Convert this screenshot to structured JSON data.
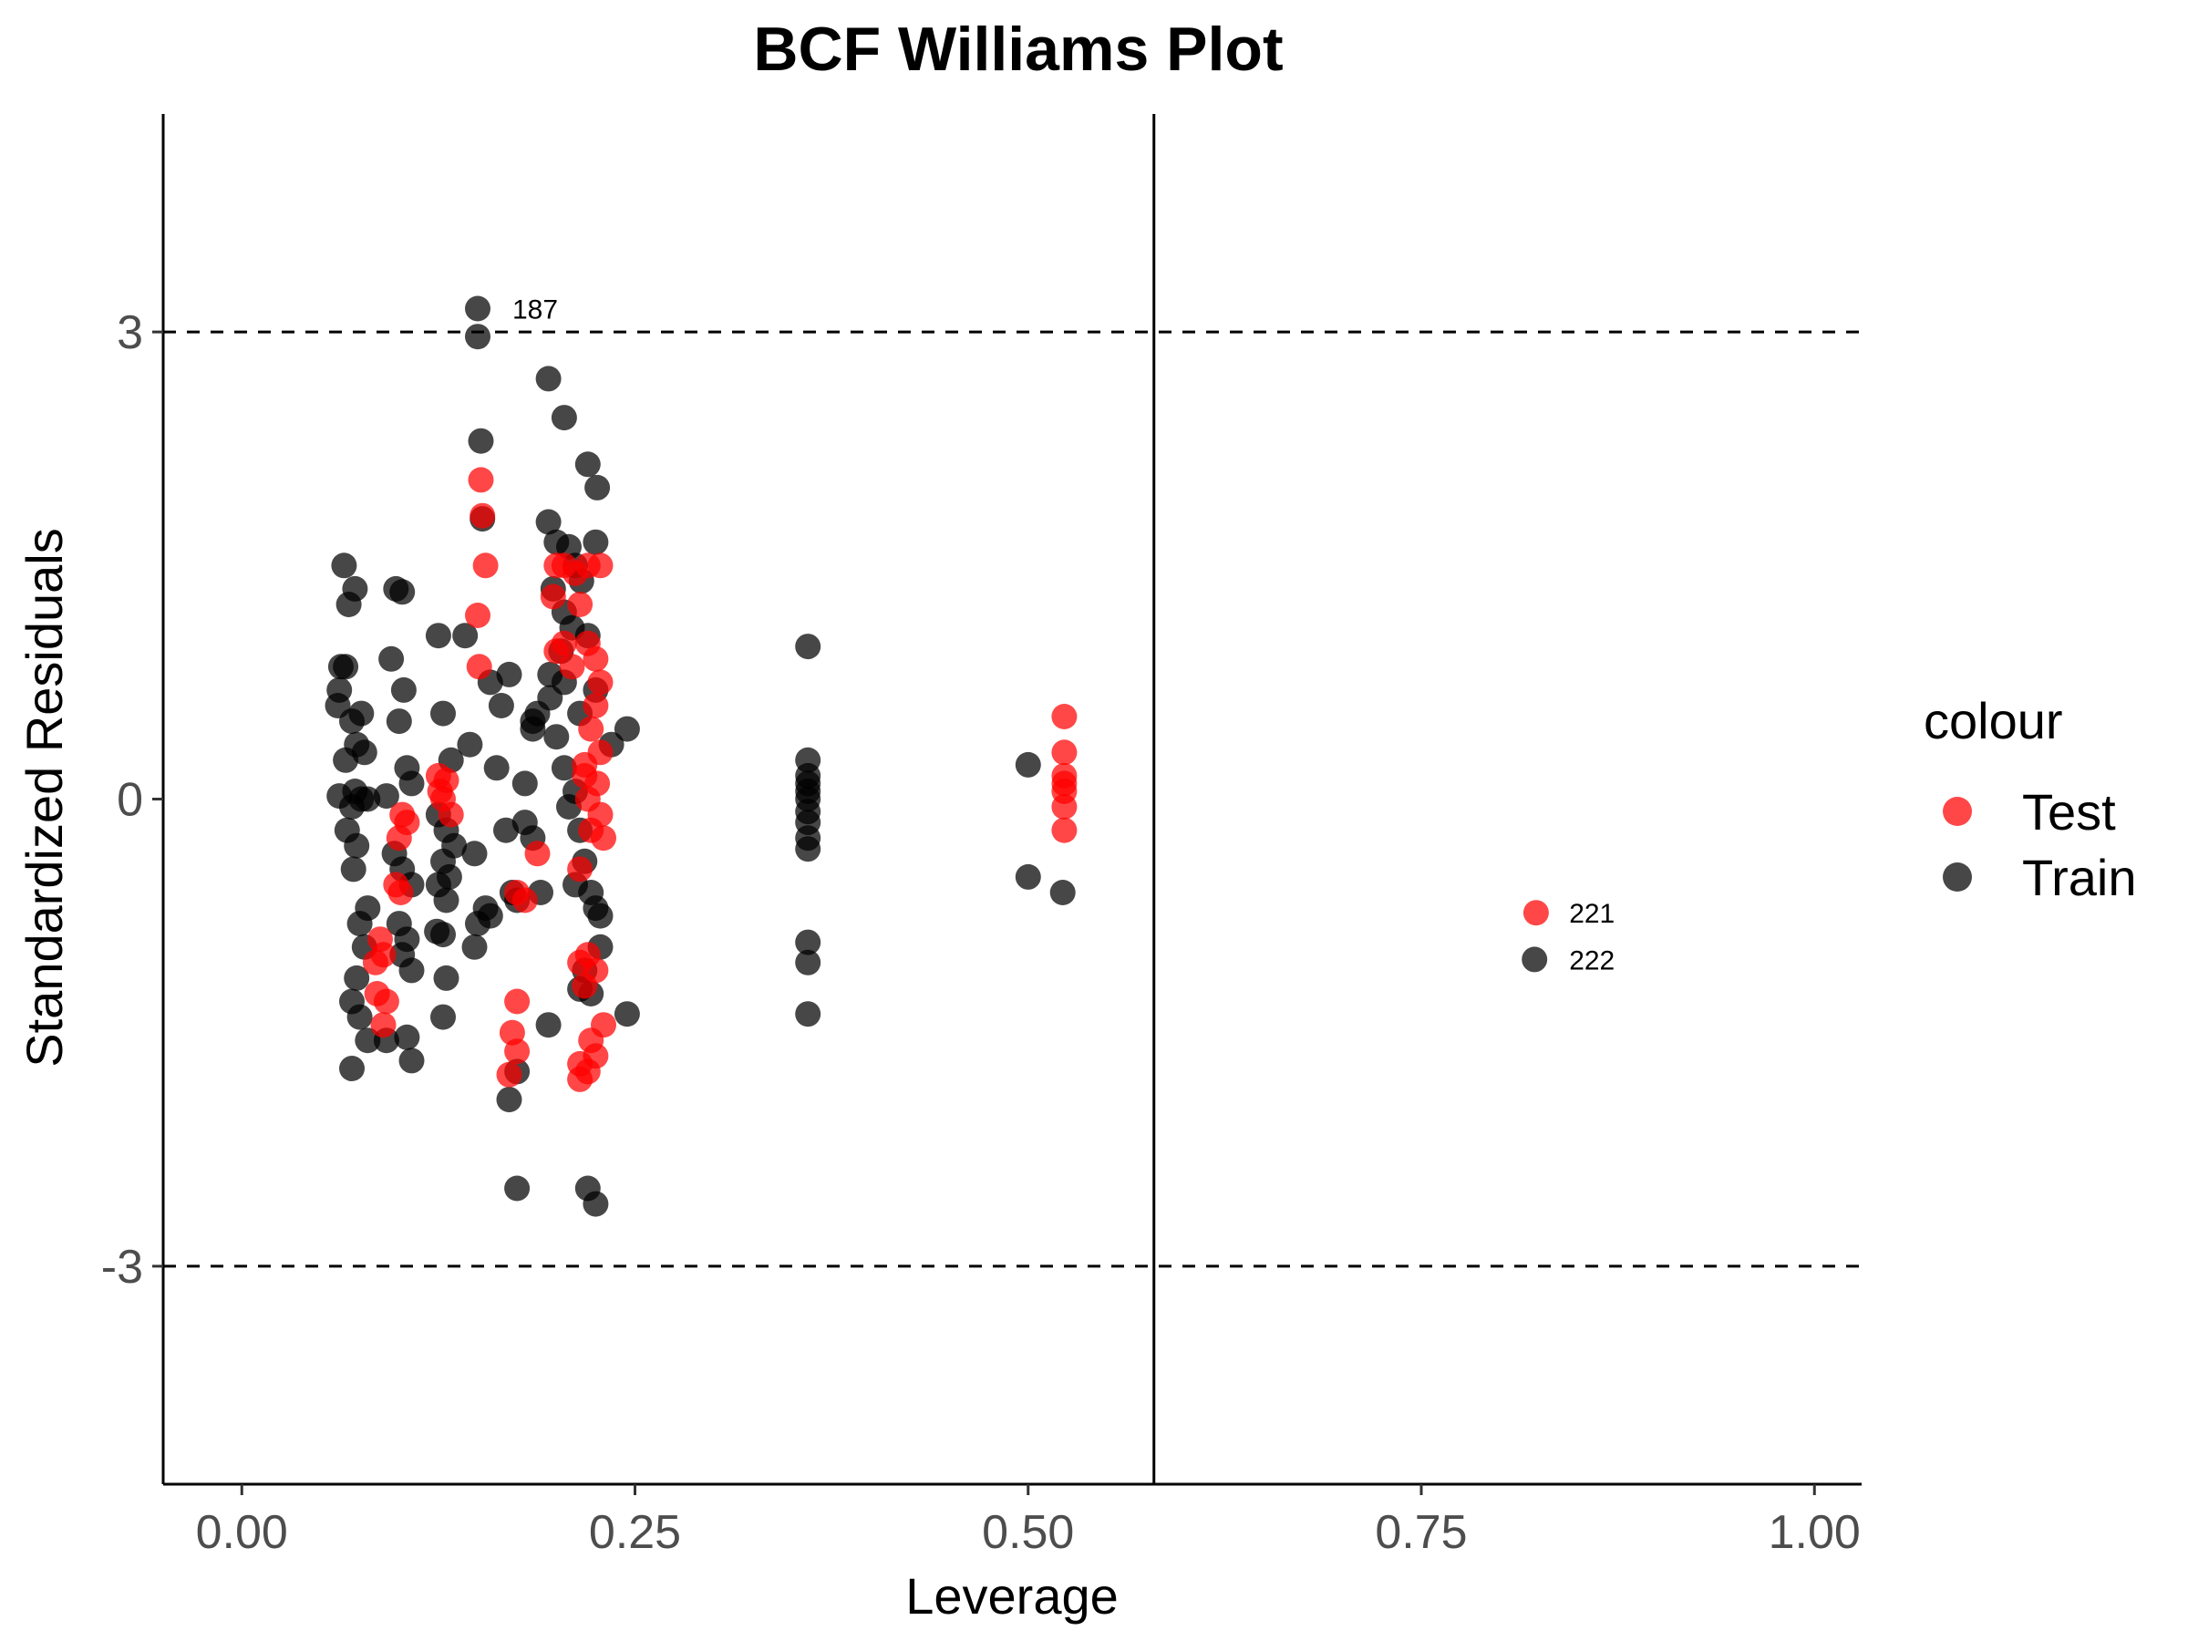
{
  "chart_data": {
    "type": "scatter",
    "title": "BCF Williams Plot",
    "xlabel": "Leverage",
    "ylabel": "Standardized Residuals",
    "xlim": [
      -0.05,
      1.03
    ],
    "ylim": [
      -4.4,
      4.4
    ],
    "x_ticks": [
      0.0,
      0.25,
      0.5,
      0.75,
      1.0
    ],
    "x_tick_labels": [
      "0.00",
      "0.25",
      "0.50",
      "0.75",
      "1.00"
    ],
    "y_ticks": [
      -3,
      0,
      3
    ],
    "y_tick_labels": [
      "-3",
      "0",
      "3"
    ],
    "grid": false,
    "reference_lines": {
      "horizontal_dashed": [
        -3,
        3
      ],
      "vertical_solid": [
        0.58
      ]
    },
    "legend": {
      "title": "colour",
      "placement": "right",
      "entries": [
        {
          "name": "Test",
          "color": "#ff0000"
        },
        {
          "name": "Train",
          "color": "#000000"
        }
      ]
    },
    "annotations": [
      {
        "text": "187",
        "x": 0.15,
        "y": 3.15
      },
      {
        "text": "221",
        "x": 0.822,
        "y": -0.73
      },
      {
        "text": "222",
        "x": 0.822,
        "y": -1.03
      }
    ],
    "series": [
      {
        "name": "Train",
        "color": "#000000",
        "points": [
          [
            0.15,
            3.15
          ],
          [
            0.15,
            2.97
          ],
          [
            0.152,
            2.3
          ],
          [
            0.195,
            2.7
          ],
          [
            0.205,
            2.45
          ],
          [
            0.22,
            2.15
          ],
          [
            0.226,
            2.0
          ],
          [
            0.153,
            1.8
          ],
          [
            0.195,
            1.78
          ],
          [
            0.2,
            1.65
          ],
          [
            0.208,
            1.62
          ],
          [
            0.225,
            1.65
          ],
          [
            0.212,
            1.5
          ],
          [
            0.216,
            1.4
          ],
          [
            0.198,
            1.35
          ],
          [
            0.205,
            1.2
          ],
          [
            0.21,
            1.1
          ],
          [
            0.203,
            0.95
          ],
          [
            0.196,
            0.8
          ],
          [
            0.205,
            0.75
          ],
          [
            0.196,
            0.65
          ],
          [
            0.188,
            0.55
          ],
          [
            0.2,
            0.4
          ],
          [
            0.215,
            0.55
          ],
          [
            0.225,
            0.7
          ],
          [
            0.22,
            1.05
          ],
          [
            0.245,
            0.45
          ],
          [
            0.235,
            0.35
          ],
          [
            0.065,
            1.5
          ],
          [
            0.068,
            1.25
          ],
          [
            0.072,
            1.35
          ],
          [
            0.063,
            0.85
          ],
          [
            0.066,
            0.85
          ],
          [
            0.062,
            0.7
          ],
          [
            0.061,
            0.6
          ],
          [
            0.07,
            0.5
          ],
          [
            0.076,
            0.55
          ],
          [
            0.073,
            0.35
          ],
          [
            0.078,
            0.3
          ],
          [
            0.066,
            0.25
          ],
          [
            0.062,
            0.02
          ],
          [
            0.07,
            -0.05
          ],
          [
            0.072,
            0.05
          ],
          [
            0.076,
            0.0
          ],
          [
            0.08,
            0.0
          ],
          [
            0.067,
            -0.2
          ],
          [
            0.073,
            -0.3
          ],
          [
            0.071,
            -0.45
          ],
          [
            0.08,
            -0.7
          ],
          [
            0.075,
            -0.8
          ],
          [
            0.078,
            -0.95
          ],
          [
            0.073,
            -1.15
          ],
          [
            0.07,
            -1.3
          ],
          [
            0.075,
            -1.4
          ],
          [
            0.08,
            -1.55
          ],
          [
            0.07,
            -1.73
          ],
          [
            0.098,
            1.35
          ],
          [
            0.102,
            1.33
          ],
          [
            0.095,
            0.9
          ],
          [
            0.103,
            0.7
          ],
          [
            0.1,
            0.5
          ],
          [
            0.105,
            0.2
          ],
          [
            0.108,
            0.1
          ],
          [
            0.092,
            0.02
          ],
          [
            0.097,
            -0.35
          ],
          [
            0.102,
            -0.45
          ],
          [
            0.108,
            -0.55
          ],
          [
            0.1,
            -0.8
          ],
          [
            0.105,
            -0.9
          ],
          [
            0.102,
            -1.0
          ],
          [
            0.108,
            -1.1
          ],
          [
            0.092,
            -1.55
          ],
          [
            0.105,
            -1.53
          ],
          [
            0.108,
            -1.68
          ],
          [
            0.125,
            1.05
          ],
          [
            0.142,
            1.05
          ],
          [
            0.128,
            0.55
          ],
          [
            0.133,
            0.25
          ],
          [
            0.125,
            -0.1
          ],
          [
            0.13,
            -0.2
          ],
          [
            0.135,
            -0.3
          ],
          [
            0.128,
            -0.4
          ],
          [
            0.132,
            -0.5
          ],
          [
            0.125,
            -0.55
          ],
          [
            0.13,
            -0.65
          ],
          [
            0.124,
            -0.85
          ],
          [
            0.128,
            -0.87
          ],
          [
            0.13,
            -1.15
          ],
          [
            0.128,
            -1.4
          ],
          [
            0.145,
            0.35
          ],
          [
            0.148,
            -0.35
          ],
          [
            0.15,
            -0.8
          ],
          [
            0.148,
            -0.95
          ],
          [
            0.155,
            -0.7
          ],
          [
            0.158,
            -0.75
          ],
          [
            0.158,
            0.75
          ],
          [
            0.165,
            0.6
          ],
          [
            0.17,
            0.8
          ],
          [
            0.162,
            0.2
          ],
          [
            0.168,
            -0.2
          ],
          [
            0.172,
            -0.6
          ],
          [
            0.175,
            -0.65
          ],
          [
            0.18,
            0.1
          ],
          [
            0.185,
            0.45
          ],
          [
            0.185,
            0.5
          ],
          [
            0.18,
            -0.15
          ],
          [
            0.185,
            -0.25
          ],
          [
            0.19,
            -0.6
          ],
          [
            0.195,
            -1.45
          ],
          [
            0.175,
            -1.75
          ],
          [
            0.17,
            -1.93
          ],
          [
            0.175,
            -2.5
          ],
          [
            0.205,
            0.2
          ],
          [
            0.212,
            0.05
          ],
          [
            0.215,
            -0.2
          ],
          [
            0.208,
            -0.05
          ],
          [
            0.218,
            -0.4
          ],
          [
            0.212,
            -0.55
          ],
          [
            0.222,
            -0.6
          ],
          [
            0.225,
            -0.7
          ],
          [
            0.228,
            -0.75
          ],
          [
            0.228,
            -0.95
          ],
          [
            0.218,
            -1.1
          ],
          [
            0.222,
            -1.25
          ],
          [
            0.215,
            -1.22
          ],
          [
            0.22,
            -2.5
          ],
          [
            0.225,
            -2.6
          ],
          [
            0.245,
            -1.38
          ],
          [
            0.36,
            0.98
          ],
          [
            0.36,
            0.25
          ],
          [
            0.36,
            0.15
          ],
          [
            0.36,
            0.1
          ],
          [
            0.36,
            0.05
          ],
          [
            0.36,
            0.0
          ],
          [
            0.36,
            -0.08
          ],
          [
            0.36,
            -0.15
          ],
          [
            0.36,
            -0.25
          ],
          [
            0.36,
            -0.32
          ],
          [
            0.36,
            -0.92
          ],
          [
            0.36,
            -1.05
          ],
          [
            0.36,
            -1.38
          ],
          [
            0.5,
            0.22
          ],
          [
            0.5,
            -0.5
          ],
          [
            0.522,
            -0.6
          ],
          [
            0.822,
            -1.03
          ]
        ]
      },
      {
        "name": "Test",
        "color": "#ff0000",
        "points": [
          [
            0.152,
            2.05
          ],
          [
            0.153,
            1.82
          ],
          [
            0.155,
            1.5
          ],
          [
            0.15,
            1.18
          ],
          [
            0.151,
            0.85
          ],
          [
            0.2,
            1.5
          ],
          [
            0.205,
            1.5
          ],
          [
            0.198,
            1.3
          ],
          [
            0.212,
            1.45
          ],
          [
            0.215,
            1.25
          ],
          [
            0.205,
            1.0
          ],
          [
            0.2,
            0.95
          ],
          [
            0.22,
            1.0
          ],
          [
            0.225,
            0.9
          ],
          [
            0.228,
            0.75
          ],
          [
            0.225,
            0.6
          ],
          [
            0.222,
            0.45
          ],
          [
            0.228,
            0.3
          ],
          [
            0.218,
            0.15
          ],
          [
            0.226,
            0.1
          ],
          [
            0.22,
            0.0
          ],
          [
            0.228,
            -0.1
          ],
          [
            0.222,
            -0.2
          ],
          [
            0.23,
            -0.25
          ],
          [
            0.215,
            -0.45
          ],
          [
            0.22,
            1.5
          ],
          [
            0.228,
            1.5
          ],
          [
            0.21,
            0.85
          ],
          [
            0.218,
            0.22
          ],
          [
            0.125,
            0.15
          ],
          [
            0.13,
            0.12
          ],
          [
            0.128,
            0.0
          ],
          [
            0.133,
            -0.1
          ],
          [
            0.126,
            0.05
          ],
          [
            0.102,
            -0.1
          ],
          [
            0.105,
            -0.15
          ],
          [
            0.1,
            -0.25
          ],
          [
            0.098,
            -0.55
          ],
          [
            0.101,
            -0.6
          ],
          [
            0.088,
            -0.9
          ],
          [
            0.085,
            -1.05
          ],
          [
            0.09,
            -1.0
          ],
          [
            0.086,
            -1.25
          ],
          [
            0.092,
            -1.3
          ],
          [
            0.09,
            -1.45
          ],
          [
            0.175,
            -0.6
          ],
          [
            0.18,
            -0.65
          ],
          [
            0.188,
            -0.35
          ],
          [
            0.175,
            -1.3
          ],
          [
            0.172,
            -1.5
          ],
          [
            0.175,
            -1.62
          ],
          [
            0.17,
            -1.77
          ],
          [
            0.215,
            -1.05
          ],
          [
            0.22,
            -1.0
          ],
          [
            0.225,
            -1.1
          ],
          [
            0.218,
            -1.2
          ],
          [
            0.23,
            -1.45
          ],
          [
            0.222,
            -1.55
          ],
          [
            0.225,
            -1.65
          ],
          [
            0.215,
            -1.7
          ],
          [
            0.22,
            -1.75
          ],
          [
            0.215,
            -1.8
          ],
          [
            0.523,
            0.53
          ],
          [
            0.523,
            0.3
          ],
          [
            0.523,
            0.15
          ],
          [
            0.523,
            0.1
          ],
          [
            0.523,
            0.05
          ],
          [
            0.523,
            -0.05
          ],
          [
            0.523,
            -0.2
          ],
          [
            0.823,
            -0.73
          ]
        ]
      }
    ]
  }
}
